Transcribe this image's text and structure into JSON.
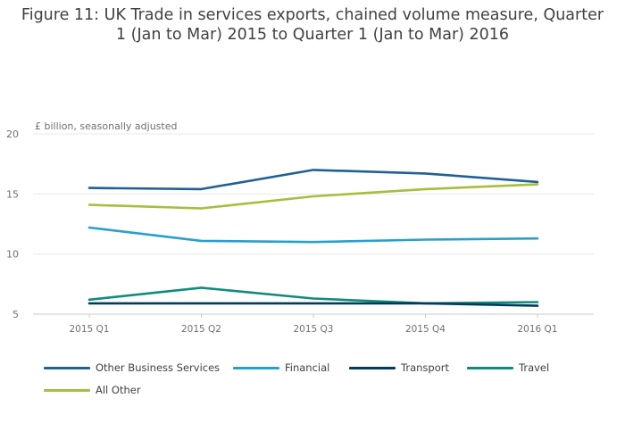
{
  "title_line1": "Figure 11: UK Trade in services exports, chained volume measure, Quarter",
  "title_line2": "1 (Jan to Mar) 2015 to Quarter 1 (Jan to Mar) 2016",
  "chart_data": {
    "type": "line",
    "title": "Figure 11: UK Trade in services exports, chained volume measure, Quarter 1 (Jan to Mar) 2015 to Quarter 1 (Jan to Mar) 2016",
    "ylabel": "£ billion, seasonally adjusted",
    "xlabel": "",
    "categories": [
      "2015 Q1",
      "2015 Q2",
      "2015 Q3",
      "2015 Q4",
      "2016 Q1"
    ],
    "ylim": [
      5,
      20
    ],
    "yticks": [
      5,
      10,
      15,
      20
    ],
    "grid": true,
    "legend_position": "bottom",
    "series": [
      {
        "name": "Other Business Services",
        "color": "#206095",
        "values": [
          15.5,
          15.4,
          17.0,
          16.7,
          16.0
        ]
      },
      {
        "name": "Financial",
        "color": "#27a0cc",
        "values": [
          12.2,
          11.1,
          11.0,
          11.2,
          11.3
        ]
      },
      {
        "name": "Transport",
        "color": "#003c57",
        "values": [
          5.9,
          5.9,
          5.9,
          5.9,
          5.7
        ]
      },
      {
        "name": "Travel",
        "color": "#118c7b",
        "values": [
          6.2,
          7.2,
          6.3,
          5.9,
          6.0
        ]
      },
      {
        "name": "All Other",
        "color": "#a8bd3a",
        "values": [
          14.1,
          13.8,
          14.8,
          15.4,
          15.8
        ]
      }
    ]
  }
}
